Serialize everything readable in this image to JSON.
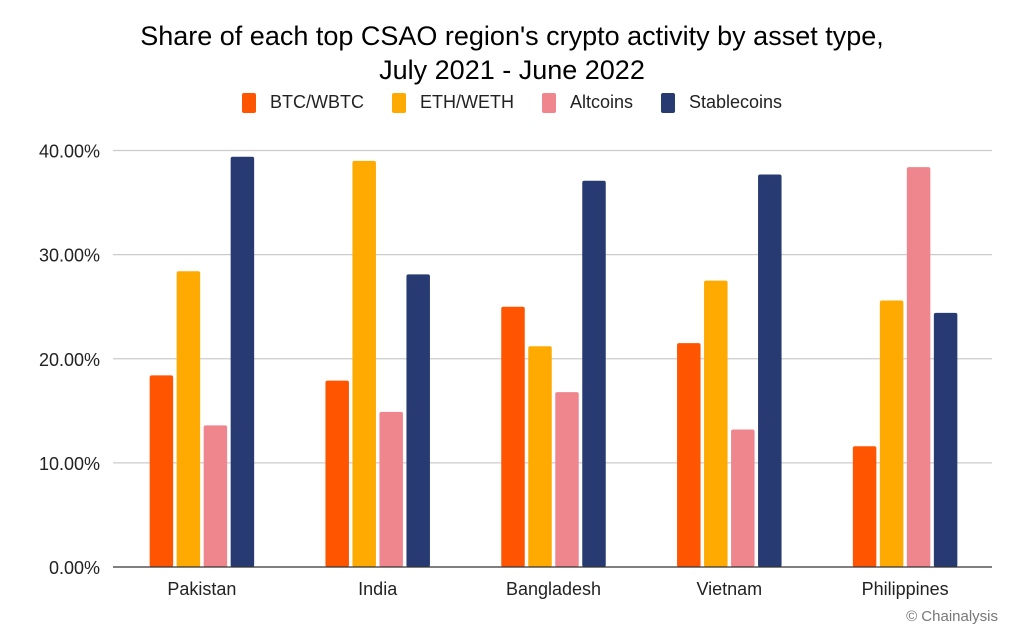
{
  "chart_data": {
    "type": "bar",
    "title": "Share of each top CSAO region's crypto activity by asset type,",
    "subtitle": "July 2021 - June 2022",
    "xlabel": "",
    "ylabel": "",
    "ylim": [
      0,
      40
    ],
    "yticks": [
      0,
      10,
      20,
      30,
      40
    ],
    "ytick_labels": [
      "0.00%",
      "10.00%",
      "20.00%",
      "30.00%",
      "40.00%"
    ],
    "grid": true,
    "legend_position": "top",
    "categories": [
      "Pakistan",
      "India",
      "Bangladesh",
      "Vietnam",
      "Philippines"
    ],
    "series": [
      {
        "name": "BTC/WBTC",
        "color": "#ff5400",
        "values": [
          18.4,
          17.9,
          25.0,
          21.5,
          11.6
        ]
      },
      {
        "name": "ETH/WETH",
        "color": "#ffaa00",
        "values": [
          28.4,
          39.0,
          21.2,
          27.5,
          25.6
        ]
      },
      {
        "name": "Altcoins",
        "color": "#f0868d",
        "values": [
          13.6,
          14.9,
          16.8,
          13.2,
          38.4
        ]
      },
      {
        "name": "Stablecoins",
        "color": "#273b72",
        "values": [
          39.4,
          28.1,
          37.1,
          37.7,
          24.4
        ]
      }
    ]
  },
  "watermark": "© Chainalysis"
}
